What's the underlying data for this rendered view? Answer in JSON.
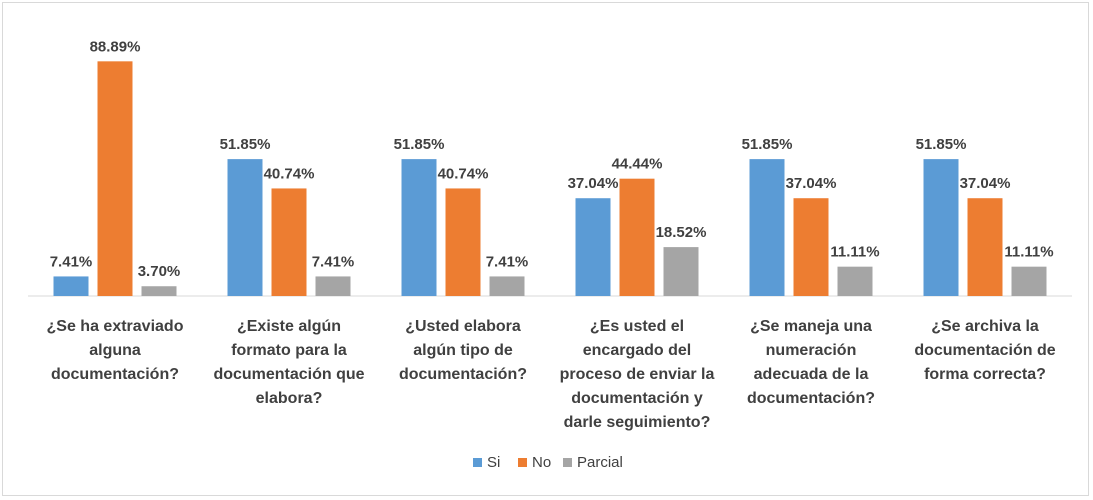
{
  "chart_data": {
    "type": "bar",
    "categories": [
      [
        "¿Se ha extraviado",
        "alguna",
        "documentación?"
      ],
      [
        "¿Existe algún",
        "formato para la",
        "documentación que",
        "elabora?"
      ],
      [
        "¿Usted elabora",
        "algún tipo de",
        "documentación?"
      ],
      [
        "¿Es usted el",
        "encargado del",
        "proceso de enviar la",
        "documentación y",
        "darle seguimiento?"
      ],
      [
        "¿Se maneja una",
        "numeración",
        "adecuada de la",
        "documentación?"
      ],
      [
        "¿Se archiva la",
        "documentación de",
        "forma correcta?"
      ]
    ],
    "series": [
      {
        "name": "Si",
        "color": "#5b9bd5",
        "values": [
          7.41,
          51.85,
          51.85,
          37.04,
          51.85,
          51.85
        ],
        "labels": [
          "7.41%",
          "51.85%",
          "51.85%",
          "37.04%",
          "51.85%",
          "51.85%"
        ]
      },
      {
        "name": "No",
        "color": "#ed7d31",
        "values": [
          88.89,
          40.74,
          40.74,
          44.44,
          37.04,
          37.04
        ],
        "labels": [
          "88.89%",
          "40.74%",
          "40.74%",
          "44.44%",
          "37.04%",
          "37.04%"
        ]
      },
      {
        "name": "Parcial",
        "color": "#a5a5a5",
        "values": [
          3.7,
          7.41,
          7.41,
          18.52,
          11.11,
          11.11
        ],
        "labels": [
          "3.70%",
          "7.41%",
          "7.41%",
          "18.52%",
          "11.11%",
          "11.11%"
        ]
      }
    ],
    "ylim": [
      0,
      100
    ],
    "grid": false,
    "legend": "bottom-center"
  }
}
